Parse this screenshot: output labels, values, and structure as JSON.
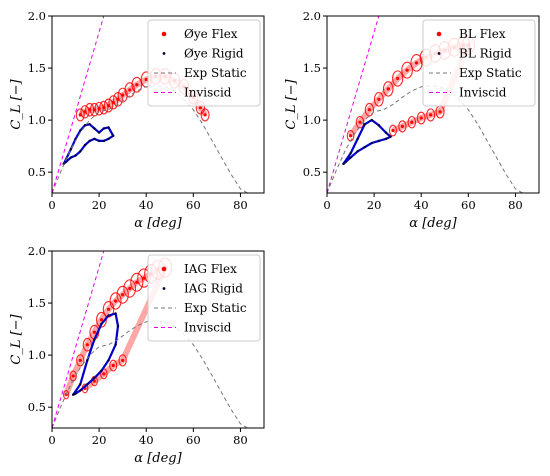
{
  "chart_data": [
    {
      "type": "scatter",
      "xlabel": "α [deg]",
      "ylabel": "C_L [−]",
      "xlim": [
        0,
        90
      ],
      "ylim": [
        0.3,
        2.0
      ],
      "xticks": [
        "0",
        "20",
        "40",
        "60",
        "80"
      ],
      "yticks": [
        "0.5",
        "1.0",
        "1.5",
        "2.0"
      ],
      "legend_position": "top-right",
      "series": [
        {
          "name": "Øye Flex",
          "kind": "flex-markers",
          "color": "#ff0000",
          "x": [
            12,
            14,
            16,
            18,
            20,
            22,
            24,
            26,
            28,
            30,
            33,
            36,
            40,
            44,
            48,
            52,
            56,
            60,
            63,
            65
          ],
          "y": [
            1.05,
            1.08,
            1.1,
            1.1,
            1.11,
            1.12,
            1.14,
            1.17,
            1.2,
            1.24,
            1.29,
            1.34,
            1.39,
            1.42,
            1.42,
            1.38,
            1.32,
            1.22,
            1.12,
            1.05
          ]
        },
        {
          "name": "Øye Rigid",
          "kind": "rigid-loop",
          "color": "#0000cc",
          "x": [
            5,
            8,
            10,
            12,
            14,
            16,
            18,
            20,
            22,
            24,
            26,
            24,
            22,
            20,
            18,
            16,
            14,
            12,
            10,
            8,
            6,
            5
          ],
          "y": [
            0.58,
            0.72,
            0.82,
            0.9,
            0.95,
            0.96,
            0.92,
            0.88,
            0.92,
            0.93,
            0.85,
            0.82,
            0.8,
            0.8,
            0.82,
            0.8,
            0.76,
            0.7,
            0.66,
            0.64,
            0.6,
            0.58
          ]
        },
        {
          "name": "Exp Static",
          "kind": "dashed-line",
          "color": "#777777",
          "x": [
            0,
            4,
            8,
            12,
            16,
            20,
            24,
            28,
            32,
            36,
            40,
            44,
            48,
            52,
            56,
            60,
            64,
            68,
            72,
            76,
            80,
            83
          ],
          "y": [
            0.3,
            0.52,
            0.72,
            0.88,
            1.0,
            1.08,
            1.1,
            1.15,
            1.22,
            1.28,
            1.32,
            1.33,
            1.32,
            1.28,
            1.2,
            1.1,
            0.96,
            0.8,
            0.64,
            0.48,
            0.34,
            0.3
          ]
        },
        {
          "name": "Inviscid",
          "kind": "dashed-line",
          "color": "#ee00ee",
          "x": [
            0,
            22
          ],
          "y": [
            0.3,
            2.0
          ]
        }
      ]
    },
    {
      "type": "scatter",
      "xlabel": "α [deg]",
      "ylabel": "C_L [−]",
      "xlim": [
        0,
        90
      ],
      "ylim": [
        0.3,
        2.0
      ],
      "xticks": [
        "0",
        "20",
        "40",
        "60",
        "80"
      ],
      "yticks": [
        "0.5",
        "1.0",
        "1.5",
        "2.0"
      ],
      "legend_position": "top-right",
      "series": [
        {
          "name": "BL Flex",
          "kind": "flex-markers",
          "color": "#ff0000",
          "x": [
            10,
            14,
            18,
            22,
            26,
            30,
            34,
            38,
            42,
            46,
            50,
            54,
            58,
            60,
            48,
            44,
            40,
            36,
            32,
            28
          ],
          "y": [
            0.85,
            0.98,
            1.1,
            1.2,
            1.3,
            1.4,
            1.48,
            1.55,
            1.6,
            1.64,
            1.67,
            1.7,
            1.72,
            1.72,
            1.08,
            1.05,
            1.02,
            0.98,
            0.94,
            0.9
          ]
        },
        {
          "name": "BL Rigid",
          "kind": "rigid-loop",
          "color": "#0000cc",
          "x": [
            7,
            10,
            13,
            16,
            19,
            22,
            25,
            27,
            25,
            22,
            19,
            16,
            13,
            10,
            8,
            7
          ],
          "y": [
            0.58,
            0.68,
            0.82,
            0.96,
            1.0,
            0.95,
            0.88,
            0.84,
            0.82,
            0.8,
            0.78,
            0.74,
            0.7,
            0.64,
            0.6,
            0.58
          ]
        },
        {
          "name": "Exp Static",
          "kind": "dashed-line",
          "color": "#777777",
          "x": [
            0,
            4,
            8,
            12,
            16,
            20,
            24,
            28,
            32,
            36,
            40,
            44,
            48,
            52,
            56,
            60,
            64,
            68,
            72,
            76,
            80,
            83
          ],
          "y": [
            0.3,
            0.52,
            0.72,
            0.88,
            1.0,
            1.08,
            1.1,
            1.15,
            1.22,
            1.28,
            1.32,
            1.33,
            1.32,
            1.28,
            1.2,
            1.1,
            0.96,
            0.8,
            0.64,
            0.48,
            0.34,
            0.3
          ]
        },
        {
          "name": "Inviscid",
          "kind": "dashed-line",
          "color": "#ee00ee",
          "x": [
            0,
            22
          ],
          "y": [
            0.3,
            2.0
          ]
        }
      ]
    },
    {
      "type": "scatter",
      "xlabel": "α [deg]",
      "ylabel": "C_L [−]",
      "xlim": [
        0,
        90
      ],
      "ylim": [
        0.3,
        2.0
      ],
      "xticks": [
        "0",
        "20",
        "40",
        "60",
        "80"
      ],
      "yticks": [
        "0.5",
        "1.0",
        "1.5",
        "2.0"
      ],
      "legend_position": "top-right",
      "series": [
        {
          "name": "IAG Flex",
          "kind": "flex-markers",
          "color": "#ff0000",
          "x": [
            6,
            9,
            12,
            15,
            18,
            21,
            24,
            27,
            30,
            33,
            36,
            39,
            42,
            45,
            48,
            30,
            26,
            22,
            18,
            14
          ],
          "y": [
            0.62,
            0.8,
            0.95,
            1.1,
            1.22,
            1.34,
            1.44,
            1.52,
            1.58,
            1.64,
            1.7,
            1.74,
            1.78,
            1.82,
            1.84,
            0.95,
            0.9,
            0.82,
            0.75,
            0.68
          ]
        },
        {
          "name": "IAG Rigid",
          "kind": "rigid-loop",
          "color": "#0000cc",
          "x": [
            9,
            12,
            15,
            18,
            21,
            24,
            27,
            28,
            27,
            24,
            21,
            18,
            15,
            12,
            10,
            9
          ],
          "y": [
            0.62,
            0.72,
            0.95,
            1.15,
            1.3,
            1.38,
            1.4,
            1.28,
            1.1,
            0.95,
            0.85,
            0.78,
            0.72,
            0.66,
            0.63,
            0.62
          ]
        },
        {
          "name": "Exp Static",
          "kind": "dashed-line",
          "color": "#777777",
          "x": [
            0,
            4,
            8,
            12,
            16,
            20,
            24,
            28,
            32,
            36,
            40,
            44,
            48,
            52,
            56,
            60,
            64,
            68,
            72,
            76,
            80,
            83
          ],
          "y": [
            0.3,
            0.52,
            0.72,
            0.88,
            1.0,
            1.08,
            1.1,
            1.15,
            1.22,
            1.28,
            1.32,
            1.33,
            1.32,
            1.28,
            1.2,
            1.1,
            0.96,
            0.8,
            0.64,
            0.48,
            0.34,
            0.3
          ]
        },
        {
          "name": "Inviscid",
          "kind": "dashed-line",
          "color": "#ee00ee",
          "x": [
            0,
            22
          ],
          "y": [
            0.3,
            2.0
          ]
        }
      ]
    }
  ]
}
